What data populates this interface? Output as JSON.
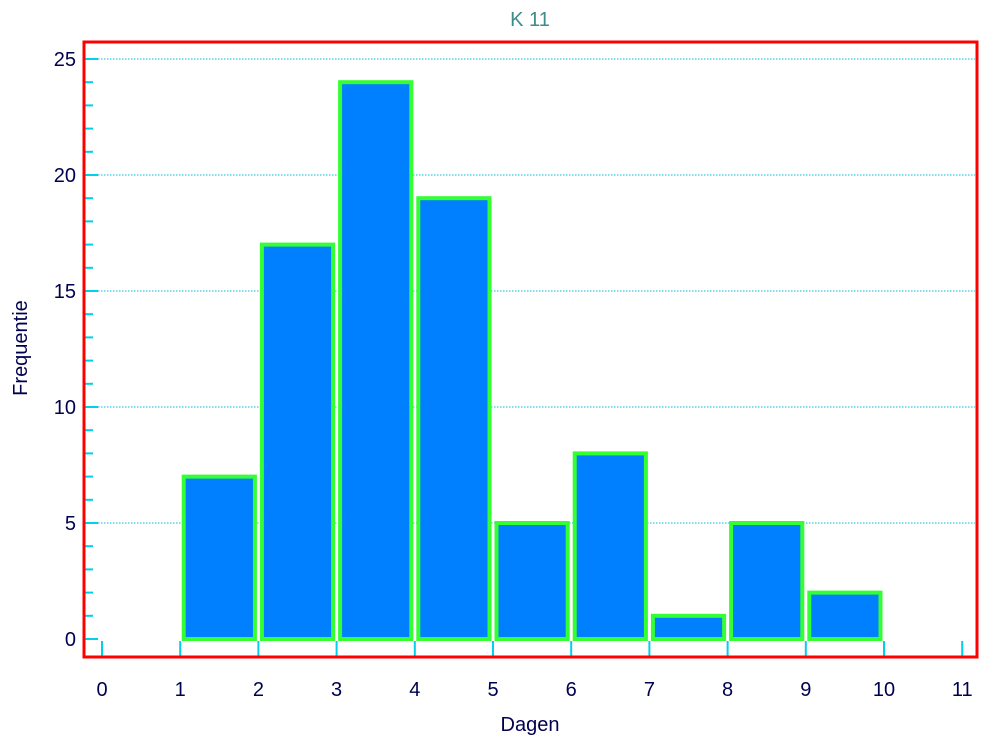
{
  "chart_data": {
    "type": "bar",
    "title": "K 11",
    "xlabel": "Dagen",
    "ylabel": "Frequentie",
    "bins": [
      {
        "x0": 0,
        "x1": 1,
        "value": 0
      },
      {
        "x0": 1,
        "x1": 2,
        "value": 7
      },
      {
        "x0": 2,
        "x1": 3,
        "value": 17
      },
      {
        "x0": 3,
        "x1": 4,
        "value": 24
      },
      {
        "x0": 4,
        "x1": 5,
        "value": 19
      },
      {
        "x0": 5,
        "x1": 6,
        "value": 5
      },
      {
        "x0": 6,
        "x1": 7,
        "value": 8
      },
      {
        "x0": 7,
        "x1": 8,
        "value": 1
      },
      {
        "x0": 8,
        "x1": 9,
        "value": 5
      },
      {
        "x0": 9,
        "x1": 10,
        "value": 2
      },
      {
        "x0": 10,
        "x1": 11,
        "value": 0
      }
    ],
    "xlim": [
      0,
      11
    ],
    "ylim": [
      0,
      25
    ],
    "x_ticks": [
      0,
      1,
      2,
      3,
      4,
      5,
      6,
      7,
      8,
      9,
      10,
      11
    ],
    "y_ticks": [
      0,
      5,
      10,
      15,
      20,
      25
    ],
    "y_minor_step": 1,
    "grid": true,
    "legend": "none",
    "colors": {
      "bar_fill": "#0080ff",
      "bar_edge": "#33ff33",
      "frame": "#ff0000",
      "grid": "#00bfd8",
      "ticks": "#00d0e8",
      "title": "#3f8a8a",
      "text": "#000050"
    }
  }
}
